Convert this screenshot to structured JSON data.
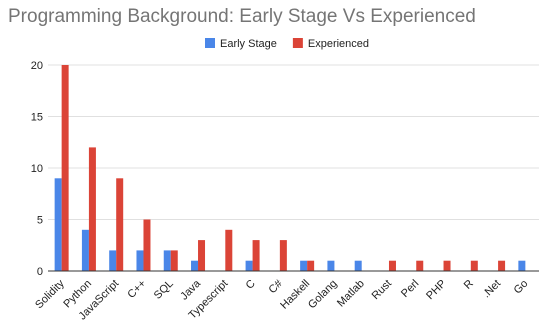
{
  "chart_data": {
    "type": "bar",
    "title": "Programming Background: Early Stage Vs Experienced",
    "categories": [
      "Solidity",
      "Python",
      "JavaScript",
      "C++",
      "SQL",
      "Java",
      "Typescript",
      "C",
      "C#",
      "Haskell",
      "Golang",
      "Matlab",
      "Rust",
      "Perl",
      "PHP",
      "R",
      ".Net",
      "Go"
    ],
    "series": [
      {
        "name": "Early Stage",
        "color": "#4a86e8",
        "values": [
          9,
          4,
          2,
          2,
          2,
          1,
          0,
          1,
          0,
          1,
          1,
          1,
          0,
          0,
          0,
          0,
          0,
          1
        ]
      },
      {
        "name": "Experienced",
        "color": "#db4437",
        "values": [
          20,
          12,
          9,
          5,
          2,
          3,
          4,
          3,
          3,
          1,
          0,
          0,
          1,
          1,
          1,
          1,
          1,
          0
        ]
      }
    ],
    "ylim": [
      0,
      20
    ],
    "yticks": [
      "0",
      "5",
      "10",
      "15",
      "20"
    ],
    "legend": "top-center",
    "grid": true
  }
}
